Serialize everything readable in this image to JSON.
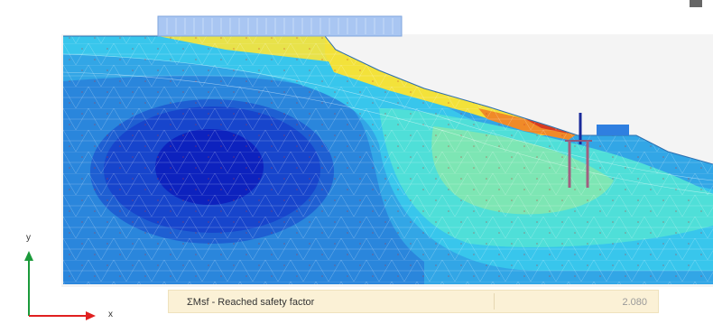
{
  "status": {
    "label": "ΣMsf - Reached safety factor",
    "value": "2.080"
  },
  "axes": {
    "x": "x",
    "y": "y"
  }
}
